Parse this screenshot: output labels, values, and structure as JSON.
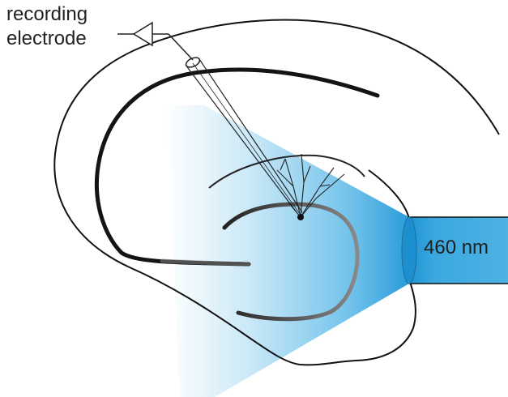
{
  "labels": {
    "electrode_line1": "recording",
    "electrode_line2": "electrode",
    "wavelength": "460 nm"
  },
  "colors": {
    "light_blue": "#29a3e0",
    "fiber_blue": "#2a9fd8",
    "outline": "#111111",
    "cell_layer_dark": "#1a1a1a",
    "cell_layer_grey": "#6a6a6a"
  }
}
